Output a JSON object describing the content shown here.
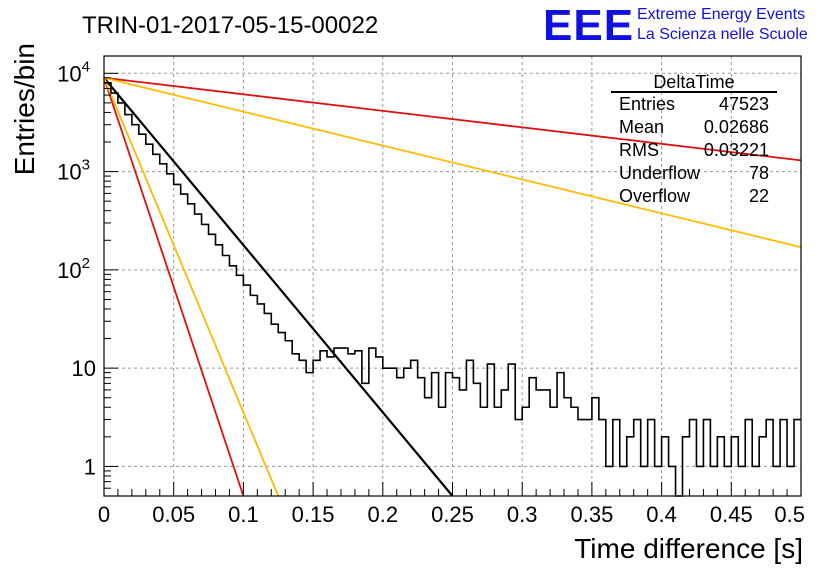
{
  "chart_data": {
    "type": "line",
    "title": "TRIN-01-2017-05-15-00022",
    "xlabel": "Time difference [s]",
    "ylabel": "Entries/bin",
    "xlim": [
      0,
      0.5
    ],
    "ylim": [
      0.5,
      15000
    ],
    "log_y": true,
    "grid": true,
    "x_ticks": [
      0,
      0.05,
      0.1,
      0.15,
      0.2,
      0.25,
      0.3,
      0.35,
      0.4,
      0.45,
      0.5
    ],
    "x_tick_labels": [
      "0",
      "0.05",
      "0.1",
      "0.15",
      "0.2",
      "0.25",
      "0.3",
      "0.35",
      "0.4",
      "0.45",
      "0.5"
    ],
    "y_ticks": [
      1,
      10,
      100,
      1000,
      10000
    ],
    "y_tick_labels": [
      {
        "base": "1",
        "exp": ""
      },
      {
        "base": "10",
        "exp": ""
      },
      {
        "base": "10",
        "exp": "2"
      },
      {
        "base": "10",
        "exp": "3"
      },
      {
        "base": "10",
        "exp": "4"
      }
    ],
    "histogram": {
      "name": "DeltaTime",
      "color": "#000000",
      "bin_width": 0.005,
      "counts": [
        8000,
        6300,
        5000,
        3800,
        3000,
        2400,
        1900,
        1500,
        1200,
        950,
        740,
        590,
        470,
        370,
        290,
        230,
        180,
        140,
        110,
        88,
        70,
        55,
        45,
        36,
        28,
        23,
        19,
        14,
        12,
        9,
        12,
        15,
        13,
        16,
        16,
        14,
        15,
        7,
        16,
        13,
        10,
        10,
        8,
        10,
        12,
        8,
        5,
        9,
        4,
        9,
        8,
        6,
        12,
        7,
        4,
        11,
        4,
        6,
        11,
        3,
        4,
        8,
        6,
        6,
        4,
        9,
        5,
        4,
        3,
        3,
        5,
        3,
        1,
        3,
        1,
        2,
        3,
        1,
        3,
        1,
        2,
        1,
        0,
        2,
        3,
        1,
        3,
        1,
        2,
        1,
        2,
        1,
        3,
        1,
        2,
        3,
        1,
        3,
        1,
        3
      ]
    },
    "fits": [
      {
        "color": "#000000",
        "x": [
          0,
          0.25
        ],
        "y": [
          9000,
          0.5
        ]
      },
      {
        "color": "#e01010",
        "x": [
          0,
          0.5
        ],
        "y": [
          9000,
          1300
        ]
      },
      {
        "color": "#ffbb00",
        "x": [
          0,
          0.5
        ],
        "y": [
          9000,
          170
        ]
      },
      {
        "color": "#e01010",
        "x": [
          0,
          0.1
        ],
        "y": [
          9000,
          0.5
        ]
      },
      {
        "color": "#ffbb00",
        "x": [
          0,
          0.125
        ],
        "y": [
          9000,
          0.5
        ]
      }
    ],
    "stats": {
      "title": "DeltaTime",
      "rows": [
        {
          "label": "Entries",
          "value": "47523"
        },
        {
          "label": "Mean",
          "value": "0.02686"
        },
        {
          "label": "RMS",
          "value": "0.03221"
        },
        {
          "label": "Underflow",
          "value": "78"
        },
        {
          "label": "Overflow",
          "value": "22"
        }
      ]
    }
  },
  "logo": {
    "mark": "EEE",
    "line1": "Extreme Energy Events",
    "line2": "La Scienza nelle Scuole"
  }
}
